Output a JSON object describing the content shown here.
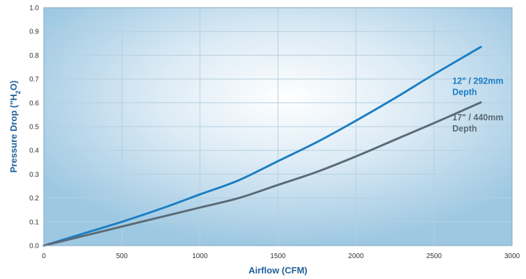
{
  "chart_data": {
    "type": "line",
    "xlabel": "Airflow (CFM)",
    "ylabel_parts": {
      "pre": "Pressure Drop (\"H",
      "sub": "2",
      "post": "O)"
    },
    "xlim": [
      0,
      3000
    ],
    "ylim": [
      0.0,
      1.0
    ],
    "x_ticks": [
      "0",
      "500",
      "1000",
      "1500",
      "2000",
      "2500",
      "3000"
    ],
    "x_tick_values": [
      0,
      500,
      1000,
      1500,
      2000,
      2500,
      3000
    ],
    "y_ticks": [
      "0.0",
      "0.1",
      "0.2",
      "0.3",
      "0.4",
      "0.5",
      "0.6",
      "0.7",
      "0.8",
      "0.9",
      "1.0"
    ],
    "y_tick_values": [
      0.0,
      0.1,
      0.2,
      0.3,
      0.4,
      0.5,
      0.6,
      0.7,
      0.8,
      0.9,
      1.0
    ],
    "grid": true,
    "series": [
      {
        "name": "12\" / 292mm Depth",
        "label_lines": [
          "12\" / 292mm",
          "Depth"
        ],
        "color": "#1a7ec4",
        "points": [
          [
            0,
            0.0
          ],
          [
            250,
            0.05
          ],
          [
            500,
            0.1
          ],
          [
            750,
            0.155
          ],
          [
            1000,
            0.215
          ],
          [
            1250,
            0.275
          ],
          [
            1500,
            0.355
          ],
          [
            1750,
            0.435
          ],
          [
            2000,
            0.525
          ],
          [
            2250,
            0.62
          ],
          [
            2500,
            0.72
          ],
          [
            2800,
            0.835
          ]
        ]
      },
      {
        "name": "17\" / 440mm Depth",
        "label_lines": [
          "17\" / 440mm",
          "Depth"
        ],
        "color": "#5a6a76",
        "points": [
          [
            0,
            0.0
          ],
          [
            250,
            0.04
          ],
          [
            500,
            0.08
          ],
          [
            750,
            0.12
          ],
          [
            1000,
            0.16
          ],
          [
            1250,
            0.2
          ],
          [
            1500,
            0.255
          ],
          [
            1750,
            0.31
          ],
          [
            2000,
            0.375
          ],
          [
            2250,
            0.445
          ],
          [
            2500,
            0.515
          ],
          [
            2800,
            0.602
          ]
        ]
      }
    ]
  }
}
